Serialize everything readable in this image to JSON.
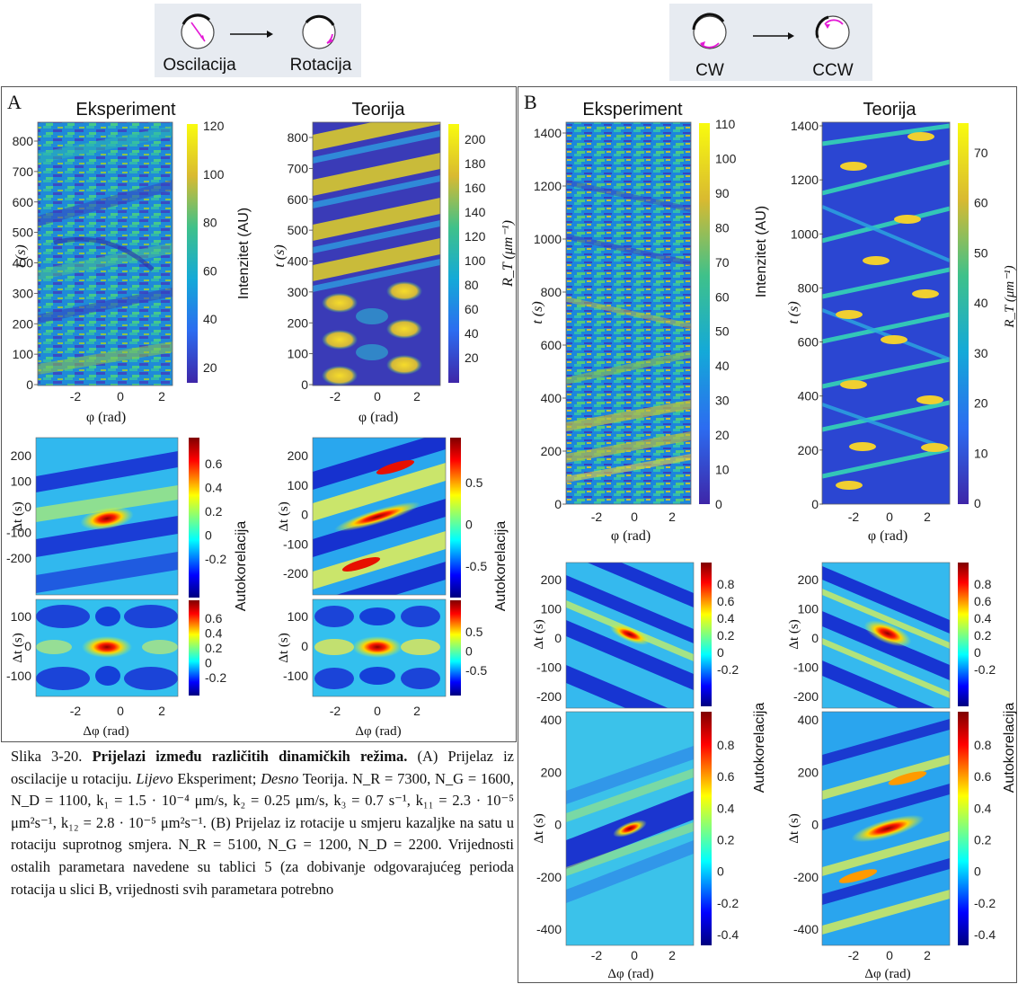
{
  "panels": {
    "A": {
      "letter": "A",
      "schematic": {
        "left": "Oscilacija",
        "right": "Rotacija"
      },
      "top_titles": [
        "Eksperiment",
        "Teorija"
      ],
      "exp_colorbar": {
        "label": "Intenzitet (AU)",
        "ticks": [
          "120",
          "100",
          "80",
          "60",
          "40",
          "20"
        ]
      },
      "theory_colorbar": {
        "label": "R_T (μm⁻¹)",
        "ticks": [
          "200",
          "180",
          "160",
          "140",
          "120",
          "100",
          "80",
          "60",
          "40",
          "20"
        ]
      },
      "t_ticks": [
        "800",
        "700",
        "600",
        "500",
        "400",
        "300",
        "200",
        "100",
        "0"
      ],
      "phi_ticks": [
        "-2",
        "0",
        "2"
      ],
      "x_label": "φ (rad)",
      "y_label": "t (s)",
      "ac_big_exp_ticks": [
        "200",
        "100",
        "0",
        "-100",
        "-200"
      ],
      "ac_big_exp_cb": [
        "0.6",
        "0.4",
        "0.2",
        "0",
        "-0.2"
      ],
      "ac_big_theory_cb": [
        "0.5",
        "0",
        "-0.5"
      ],
      "ac_small_ticks": [
        "100",
        "0",
        "-100"
      ],
      "ac_small_exp_cb": [
        "0.6",
        "0.4",
        "0.2",
        "0",
        "-0.2"
      ],
      "ac_small_theory_cb": [
        "0.5",
        "0",
        "-0.5"
      ],
      "ac_y_label": "Δt (s)",
      "ac_x_label": "Δφ (rad)",
      "ac_label": "Autokorelacija"
    },
    "B": {
      "letter": "B",
      "schematic": {
        "left": "CW",
        "right": "CCW"
      },
      "top_titles": [
        "Eksperiment",
        "Teorija"
      ],
      "exp_colorbar": {
        "label": "Intenzitet (AU)",
        "ticks": [
          "110",
          "100",
          "90",
          "80",
          "70",
          "60",
          "50",
          "40",
          "30",
          "20",
          "10",
          "0"
        ]
      },
      "theory_colorbar": {
        "label": "R_T (μm⁻¹)",
        "ticks": [
          "70",
          "60",
          "50",
          "40",
          "30",
          "20",
          "10",
          "0"
        ]
      },
      "t_ticks": [
        "1400",
        "1200",
        "1000",
        "800",
        "600",
        "400",
        "200",
        "0"
      ],
      "phi_ticks": [
        "-2",
        "0",
        "2"
      ],
      "x_label": "φ (rad)",
      "y_label": "t (s)",
      "ac_small_ticks": [
        "200",
        "100",
        "0",
        "-100",
        "-200"
      ],
      "ac_small_cb": [
        "0.8",
        "0.6",
        "0.4",
        "0.2",
        "0",
        "-0.2"
      ],
      "ac_big_ticks": [
        "400",
        "200",
        "0",
        "-200",
        "-400"
      ],
      "ac_big_exp_cb": [
        "0.8",
        "0.6",
        "0.4",
        "0.2",
        "0",
        "-0.2",
        "-0.4"
      ],
      "ac_big_theory_cb": [
        "0.8",
        "0.6",
        "0.4",
        "0.2",
        "0",
        "-0.2",
        "-0.4"
      ],
      "ac_y_label": "Δt (s)",
      "ac_x_label": "Δφ (rad)",
      "ac_label": "Autokorelacija"
    }
  },
  "caption": {
    "lead": "Slika 3-20. ",
    "title": "Prijelazi između različitih dinamičkih režima.",
    "part_a": "(A) Prijelaz iz oscilacije u rotaciju. ",
    "left_word": "Lijevo",
    "mid": " Eksperiment; ",
    "right_word": "Desno",
    "theory": " Teorija.",
    "params_a": "N_R = 7300, N_G = 1600, N_D = 1100, k₁ = 1.5 · 10⁻⁴ μm/s, k₂ = 0.25 μm/s, k₃ = 0.7 s⁻¹, k₁₁ = 2.3 · 10⁻⁵ μm²s⁻¹, k₁₂ = 2.8 · 10⁻⁵ μm²s⁻¹.",
    "part_b": "(B) Prijelaz iz rotacije u smjeru kazaljke na satu u rotaciju suprotnog smjera.",
    "params_b": "N_R = 5100, N_G = 1200, N_D = 2200.",
    "rest": "Vrijednosti ostalih parametara navedene su tablici 5 (za dobivanje odgovarajućeg perioda rotacija u slici B, vrijednosti svih parametara potrebno"
  }
}
